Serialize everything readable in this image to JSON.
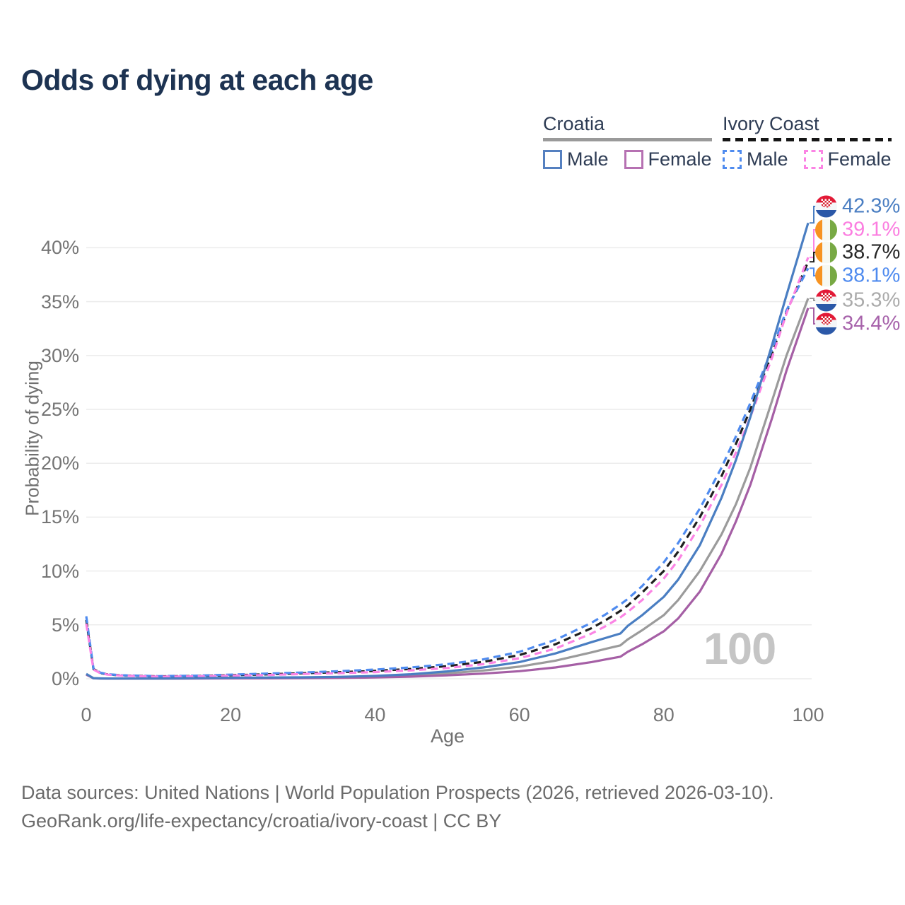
{
  "title": "Odds of dying at each age",
  "watermark": "100",
  "legend": {
    "groups": [
      {
        "id": "croatia",
        "label": "Croatia",
        "line_style": "solid",
        "items": [
          {
            "label": "Male"
          },
          {
            "label": "Female"
          }
        ]
      },
      {
        "id": "ivory-coast",
        "label": "Ivory Coast",
        "line_style": "dashed",
        "items": [
          {
            "label": "Male"
          },
          {
            "label": "Female"
          }
        ]
      }
    ]
  },
  "footer": {
    "line1": "Data sources: United Nations | World Population Prospects (2026, retrieved 2026-03-10).",
    "line2": "GeoRank.org/life-expectancy/croatia/ivory-coast | CC BY"
  },
  "chart_data": {
    "type": "line",
    "title": "Odds of dying at each age",
    "xlabel": "Age",
    "ylabel": "Probability of dying",
    "xlim": [
      0,
      100
    ],
    "ylim_pct": [
      0,
      45
    ],
    "grid": "horizontal",
    "legend_position": "top-right",
    "x_ticks": [
      0,
      20,
      40,
      60,
      80,
      100
    ],
    "y_ticks_pct": [
      0,
      5,
      10,
      15,
      20,
      25,
      30,
      35,
      40
    ],
    "x": [
      0,
      1,
      2,
      3,
      5,
      10,
      15,
      20,
      25,
      30,
      35,
      40,
      45,
      50,
      55,
      60,
      65,
      70,
      72,
      74,
      75,
      77,
      80,
      82,
      85,
      88,
      90,
      92,
      95,
      97,
      100
    ],
    "series": [
      {
        "id": "croatia-male",
        "name": "Croatia Male",
        "style": "solid",
        "color": "#4a7ec2",
        "end_value_pct": 42.3,
        "values_pct": [
          0.45,
          0.05,
          0.03,
          0.02,
          0.02,
          0.02,
          0.05,
          0.09,
          0.11,
          0.13,
          0.18,
          0.26,
          0.42,
          0.68,
          1.05,
          1.55,
          2.35,
          3.4,
          3.8,
          4.2,
          4.9,
          5.9,
          7.6,
          9.2,
          12.4,
          16.8,
          20.3,
          24.3,
          31.0,
          35.6,
          42.3
        ]
      },
      {
        "id": "croatia-female",
        "name": "Croatia Female",
        "style": "solid",
        "color": "#a55fa5",
        "end_value_pct": 34.4,
        "values_pct": [
          0.38,
          0.04,
          0.02,
          0.015,
          0.01,
          0.01,
          0.02,
          0.03,
          0.04,
          0.05,
          0.08,
          0.12,
          0.2,
          0.32,
          0.48,
          0.7,
          1.05,
          1.55,
          1.8,
          2.05,
          2.5,
          3.2,
          4.4,
          5.6,
          8.1,
          11.6,
          14.6,
          18.0,
          24.2,
          28.6,
          34.4
        ]
      },
      {
        "id": "croatia-both",
        "name": "Croatia Both sexes",
        "style": "solid",
        "color": "#9b9b9b",
        "end_value_pct": 35.3,
        "values_pct": [
          0.42,
          0.045,
          0.025,
          0.018,
          0.015,
          0.015,
          0.035,
          0.06,
          0.075,
          0.09,
          0.13,
          0.19,
          0.31,
          0.5,
          0.76,
          1.12,
          1.68,
          2.45,
          2.78,
          3.1,
          3.65,
          4.5,
          5.9,
          7.3,
          10.0,
          13.4,
          16.2,
          19.6,
          25.8,
          30.0,
          35.3
        ]
      },
      {
        "id": "ivory-coast-male",
        "name": "Ivory Coast Male",
        "style": "dashed",
        "color": "#4f8bef",
        "end_value_pct": 38.1,
        "values_pct": [
          5.8,
          0.95,
          0.55,
          0.42,
          0.32,
          0.24,
          0.28,
          0.38,
          0.48,
          0.58,
          0.7,
          0.85,
          1.05,
          1.35,
          1.8,
          2.5,
          3.6,
          5.2,
          6.0,
          6.9,
          7.4,
          8.6,
          10.8,
          12.6,
          15.8,
          19.6,
          22.5,
          25.6,
          30.6,
          34.2,
          38.1
        ]
      },
      {
        "id": "ivory-coast-female",
        "name": "Ivory Coast Female",
        "style": "dashed",
        "color": "#fb84e4",
        "end_value_pct": 39.1,
        "values_pct": [
          5.1,
          0.85,
          0.5,
          0.38,
          0.28,
          0.2,
          0.22,
          0.28,
          0.35,
          0.44,
          0.52,
          0.62,
          0.78,
          1.0,
          1.35,
          1.9,
          2.8,
          4.2,
          4.9,
          5.7,
          6.2,
          7.3,
          9.3,
          11.0,
          14.2,
          18.0,
          21.0,
          24.3,
          29.8,
          33.9,
          39.1
        ]
      },
      {
        "id": "ivory-coast-both",
        "name": "Ivory Coast Both sexes",
        "style": "dashed",
        "color": "#1f1f1f",
        "end_value_pct": 38.7,
        "values_pct": [
          5.45,
          0.9,
          0.52,
          0.4,
          0.3,
          0.22,
          0.25,
          0.33,
          0.41,
          0.51,
          0.61,
          0.73,
          0.91,
          1.17,
          1.57,
          2.2,
          3.2,
          4.7,
          5.45,
          6.3,
          6.8,
          8.0,
          10.0,
          11.8,
          15.0,
          18.8,
          21.8,
          25.0,
          30.2,
          34.0,
          38.7
        ]
      }
    ],
    "end_labels": [
      {
        "series_id": "croatia-male",
        "flag": "croatia",
        "value": "42.3%",
        "color": "#4a7ec2"
      },
      {
        "series_id": "ivory-coast-female",
        "flag": "ivory-coast",
        "value": "39.1%",
        "color": "#fb7ee0"
      },
      {
        "series_id": "ivory-coast-both",
        "flag": "ivory-coast",
        "value": "38.7%",
        "color": "#262626"
      },
      {
        "series_id": "ivory-coast-male",
        "flag": "ivory-coast",
        "value": "38.1%",
        "color": "#4f8bef"
      },
      {
        "series_id": "croatia-both",
        "flag": "croatia",
        "value": "35.3%",
        "color": "#ababab"
      },
      {
        "series_id": "croatia-female",
        "flag": "croatia",
        "value": "34.4%",
        "color": "#a763ab"
      }
    ]
  }
}
